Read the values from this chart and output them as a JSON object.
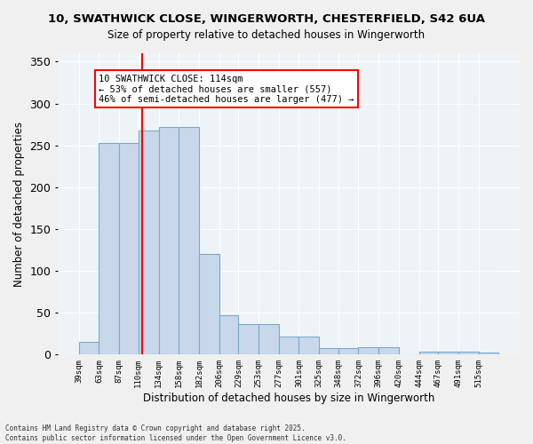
{
  "title_line1": "10, SWATHWICK CLOSE, WINGERWORTH, CHESTERFIELD, S42 6UA",
  "title_line2": "Size of property relative to detached houses in Wingerworth",
  "xlabel": "Distribution of detached houses by size in Wingerworth",
  "ylabel": "Number of detached properties",
  "bar_color": "#c8d8ea",
  "bar_edgecolor": "#7aaac8",
  "background_color": "#eef3f8",
  "grid_color": "#ffffff",
  "vline_value": 114,
  "vline_color": "red",
  "annotation_text": "10 SWATHWICK CLOSE: 114sqm\n← 53% of detached houses are smaller (557)\n46% of semi-detached houses are larger (477) →",
  "annotation_box_color": "white",
  "annotation_box_edgecolor": "red",
  "bins": [
    39,
    63,
    87,
    110,
    134,
    158,
    182,
    206,
    229,
    253,
    277,
    301,
    325,
    348,
    372,
    396,
    420,
    444,
    467,
    491,
    515
  ],
  "bar_heights": [
    15,
    253,
    253,
    268,
    272,
    272,
    120,
    47,
    36,
    36,
    22,
    22,
    8,
    8,
    9,
    9,
    0,
    4,
    4,
    4,
    3
  ],
  "xlabels": [
    "39sqm",
    "63sqm",
    "87sqm",
    "110sqm",
    "134sqm",
    "158sqm",
    "182sqm",
    "206sqm",
    "229sqm",
    "253sqm",
    "277sqm",
    "301sqm",
    "325sqm",
    "348sqm",
    "372sqm",
    "396sqm",
    "420sqm",
    "444sqm",
    "467sqm",
    "491sqm",
    "515sqm"
  ],
  "ylim": [
    0,
    360
  ],
  "yticks": [
    0,
    50,
    100,
    150,
    200,
    250,
    300,
    350
  ],
  "footer_text": "Contains HM Land Registry data © Crown copyright and database right 2025.\nContains public sector information licensed under the Open Government Licence v3.0."
}
